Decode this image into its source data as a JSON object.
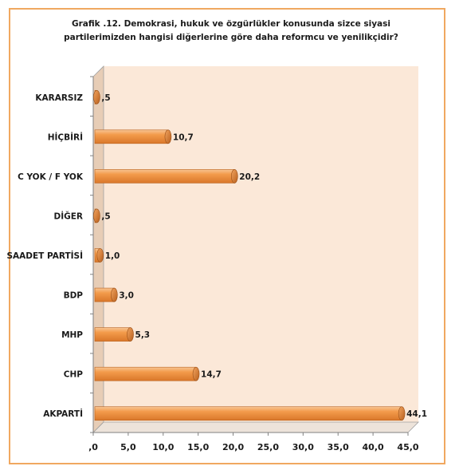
{
  "chart_data": {
    "type": "bar",
    "orientation": "horizontal",
    "title_lines": [
      "Grafik .12.  Demokrasi, hukuk ve özgürlükler konusunda sizce siyasi",
      "partilerimizden hangisi diğerlerine göre daha reformcu ve yenilikçidir?"
    ],
    "categories": [
      "KARARSIZ",
      "HİÇBİRİ",
      "C YOK / F YOK",
      "DİĞER",
      "SAADET PARTİSİ",
      "BDP",
      "MHP",
      "CHP",
      "AKPARTİ"
    ],
    "values": [
      0.5,
      10.7,
      20.2,
      0.5,
      1.0,
      3.0,
      5.3,
      14.7,
      44.1
    ],
    "value_labels": [
      ",5",
      "10,7",
      "20,2",
      ",5",
      "1,0",
      "3,0",
      "5,3",
      "14,7",
      "44,1"
    ],
    "x_ticks": [
      ",0",
      "5,0",
      "10,0",
      "15,0",
      "20,0",
      "25,0",
      "30,0",
      "35,0",
      "40,0",
      "45,0"
    ],
    "xlim": [
      0,
      45
    ],
    "bar_color": "#f0923a",
    "bar_highlight": "#f8c594",
    "plot_background": "#fbe8d8",
    "frame_color": "#f0a860",
    "grid": false,
    "legend": "none"
  }
}
